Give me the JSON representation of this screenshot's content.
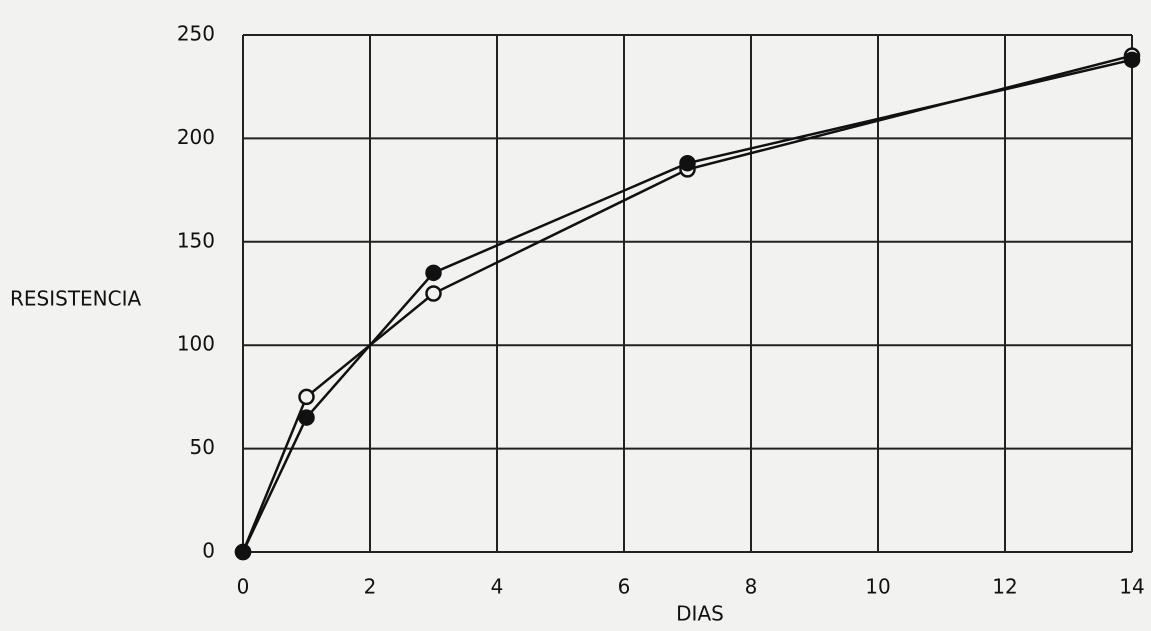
{
  "chart_data": {
    "type": "line",
    "x_label": "DIAS",
    "y_label": "RESISTENCIA",
    "x": [
      0,
      1,
      3,
      7,
      14
    ],
    "series": [
      {
        "color": "#111111",
        "marker": "open",
        "values": [
          0,
          75,
          125,
          185,
          240
        ]
      },
      {
        "color": "#111111",
        "marker": "filled",
        "values": [
          0,
          65,
          135,
          188,
          238
        ]
      }
    ],
    "xlim": [
      0,
      14
    ],
    "xticks": [
      0,
      2,
      4,
      6,
      8,
      10,
      12,
      14
    ],
    "ylim": [
      0,
      250
    ],
    "yticks": [
      0,
      50,
      100,
      150,
      200,
      250
    ],
    "grid": true
  }
}
